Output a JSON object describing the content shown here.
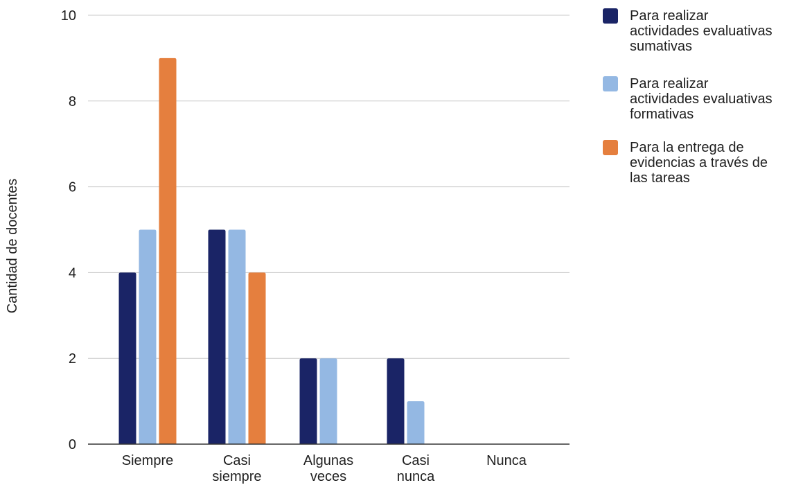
{
  "chart_data": {
    "type": "bar",
    "title": "",
    "xlabel": "",
    "ylabel": "Cantidad de docentes",
    "ylim": [
      0,
      10
    ],
    "yticks": [
      0,
      2,
      4,
      6,
      8,
      10
    ],
    "grid": true,
    "legend_position": "right",
    "categories": [
      [
        "Siempre"
      ],
      [
        "Casi",
        "siempre"
      ],
      [
        "Algunas",
        "veces"
      ],
      [
        "Casi",
        "nunca"
      ],
      [
        "Nunca"
      ]
    ],
    "series": [
      {
        "name": [
          "Para realizar",
          "actividades evaluativas",
          "sumativas"
        ],
        "color": "#1a2466",
        "values": [
          4,
          5,
          2,
          2,
          0
        ]
      },
      {
        "name": [
          "Para realizar",
          "actividades evaluativas",
          "formativas"
        ],
        "color": "#94b8e3",
        "values": [
          5,
          5,
          2,
          1,
          0
        ]
      },
      {
        "name": [
          "Para la entrega de",
          "evidencias a través de",
          "las tareas"
        ],
        "color": "#e57f3e",
        "values": [
          9,
          4,
          0,
          0,
          0
        ]
      }
    ]
  }
}
